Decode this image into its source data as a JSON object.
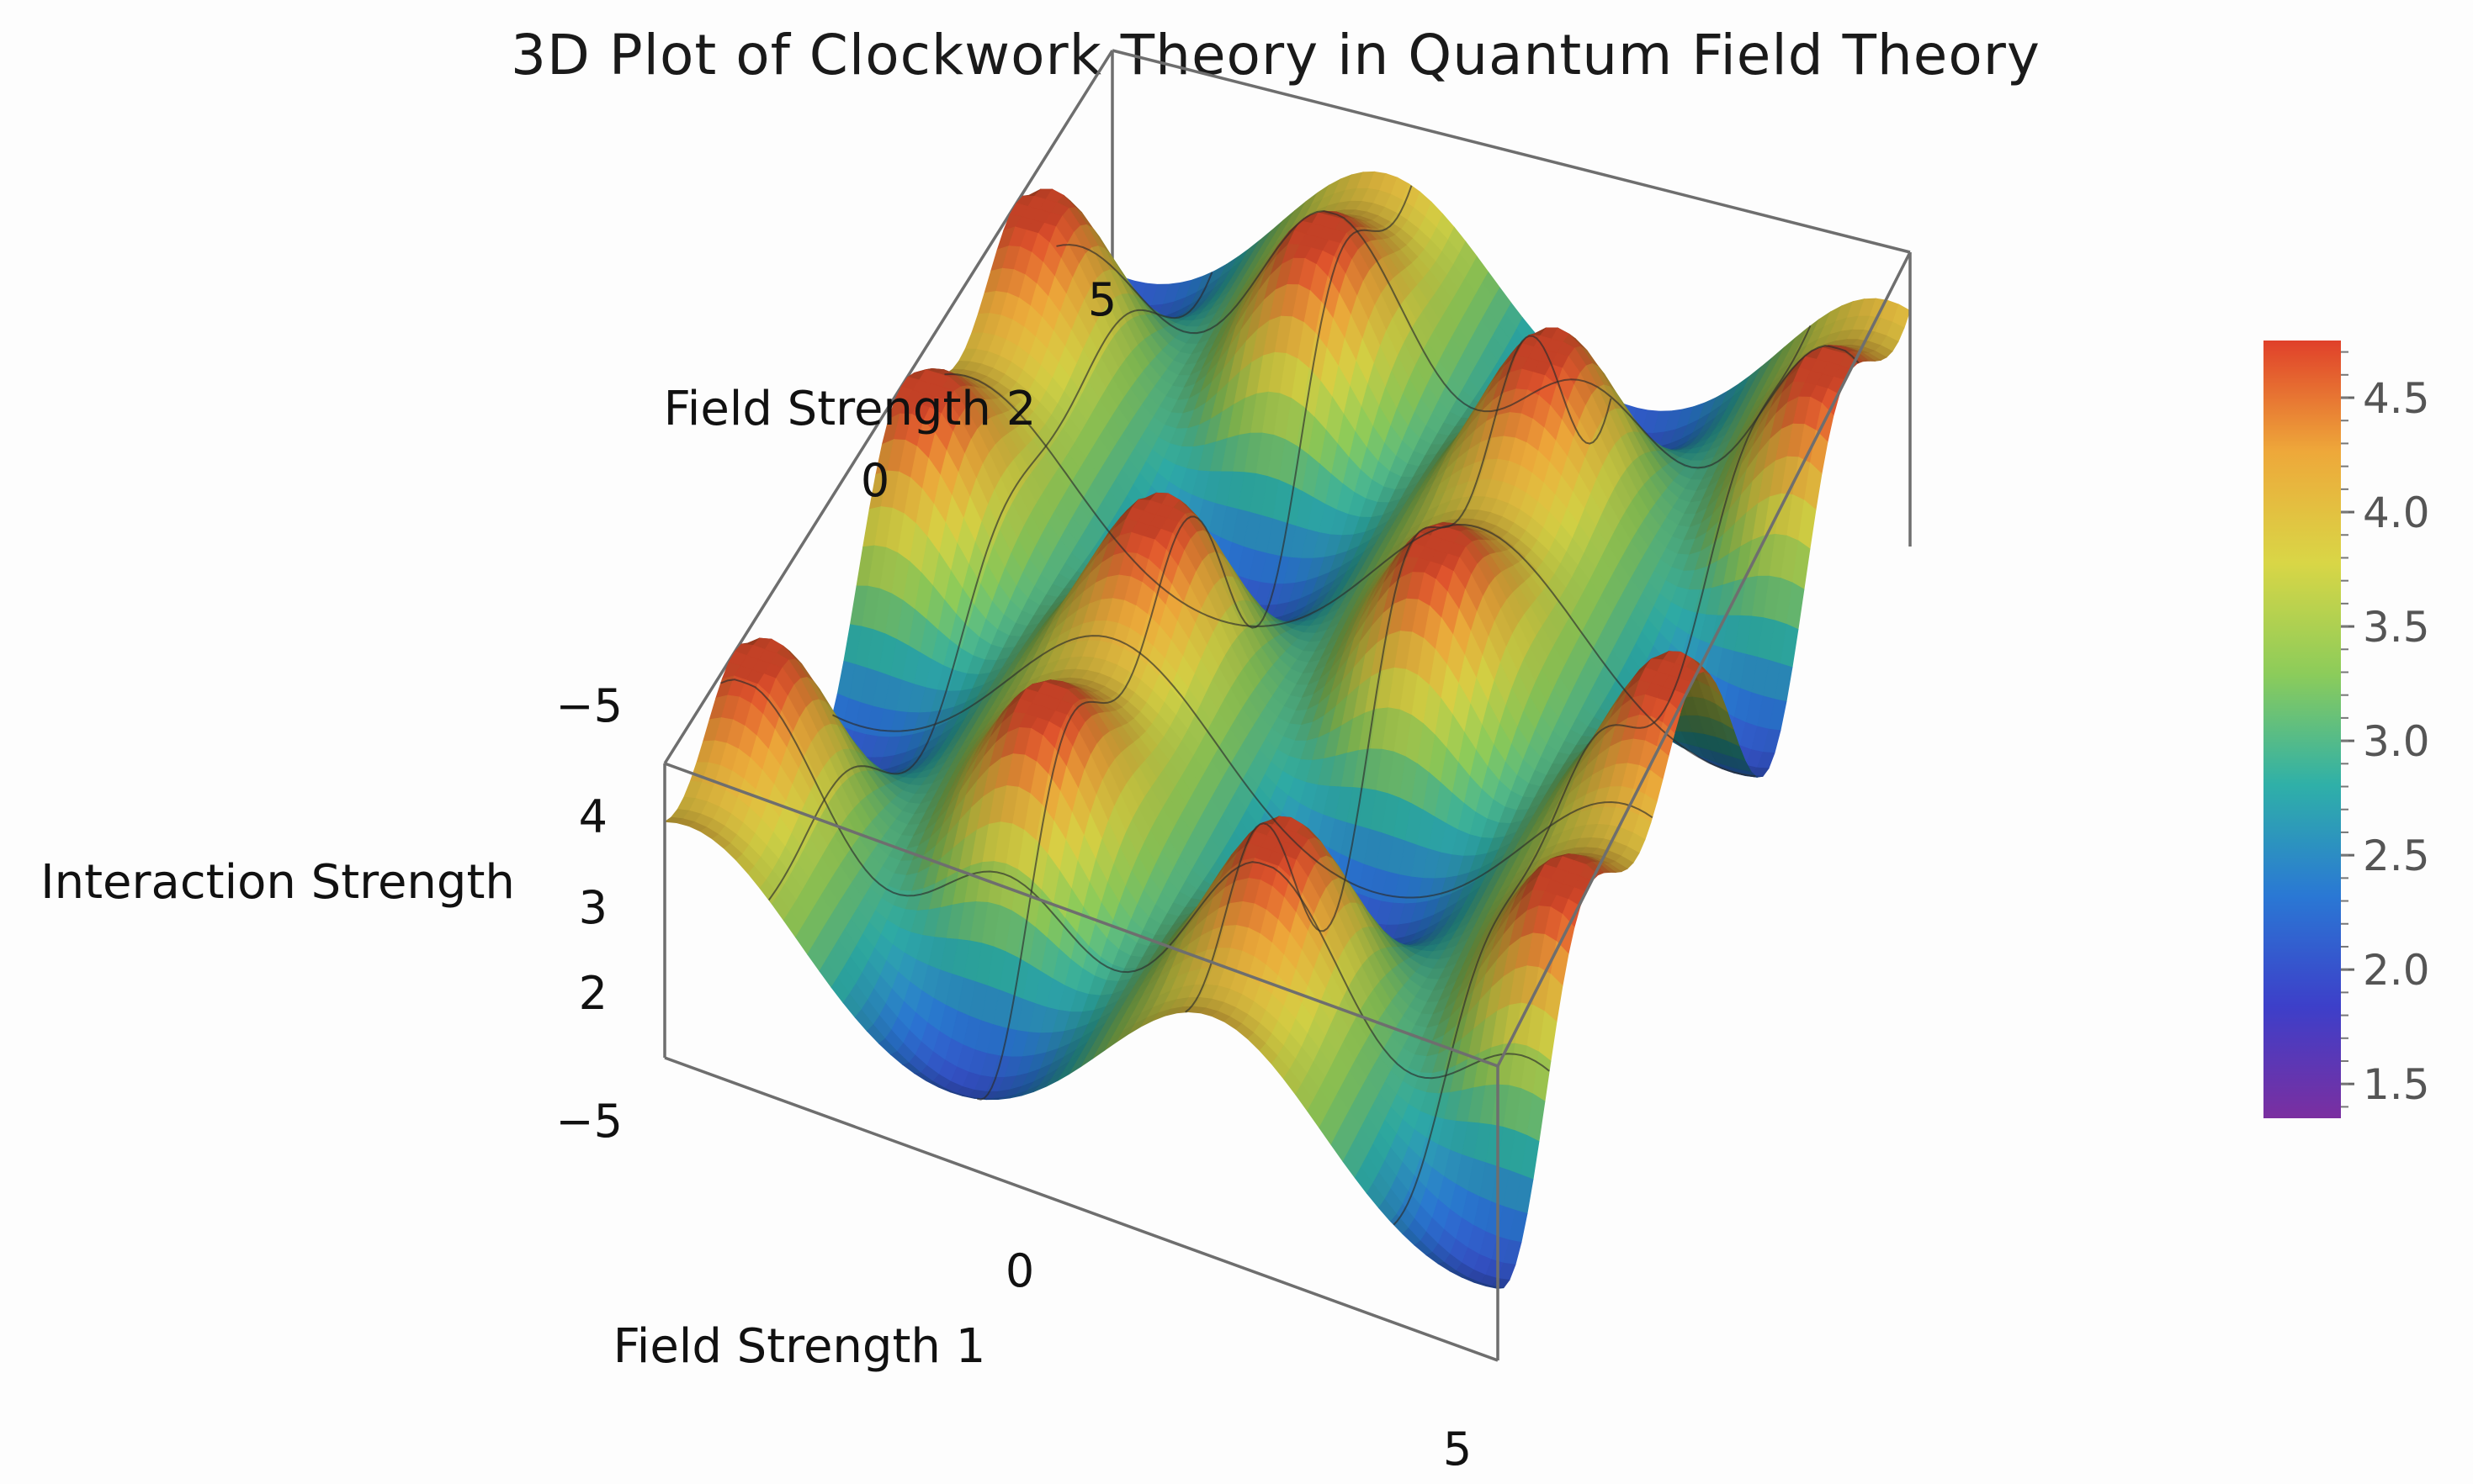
{
  "chart_data": {
    "type": "surface3d",
    "title": "3D Plot of Clockwork Theory in Quantum Field Theory",
    "xlabel": "Field Strength 1",
    "ylabel": "Field Strength 2",
    "zlabel": "Interaction Strength",
    "xlim": [
      -5,
      5
    ],
    "ylim": [
      -5,
      5
    ],
    "zlim": [
      1.4,
      4.7
    ],
    "x_ticks": [
      "-5",
      "0",
      "5"
    ],
    "y_ticks": [
      "-5",
      "0",
      "5"
    ],
    "z_ticks": [
      "2",
      "3",
      "4"
    ],
    "function": "3 + sin(x) * sin(y) + 1.7 * sin(x)^2 * cos(y)^2 (approx.)",
    "z_range_observed": [
      1.4,
      4.7
    ],
    "colorscale": {
      "name": "rainbow",
      "stops": [
        "#7b2fa0",
        "#3d3fc9",
        "#2a78d4",
        "#2fb0a8",
        "#8ccc5a",
        "#d9d646",
        "#eea83a",
        "#e0402a"
      ],
      "range": [
        1.35,
        4.75
      ],
      "ticks": [
        "1.5",
        "2.0",
        "2.5",
        "3.0",
        "3.5",
        "4.0",
        "4.5"
      ]
    },
    "mesh_lines": true,
    "grid": false
  }
}
